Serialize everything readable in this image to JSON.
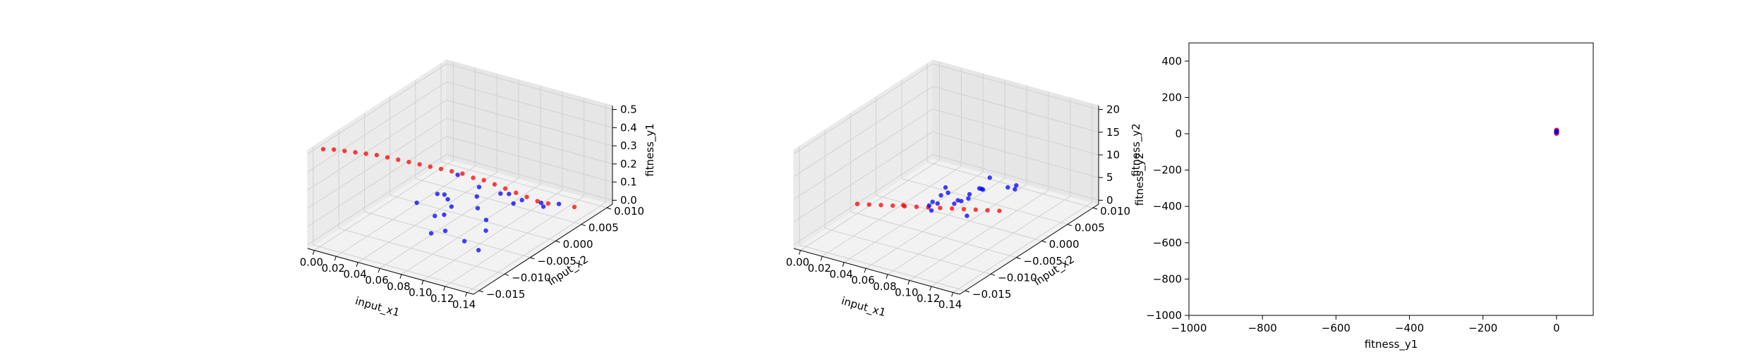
{
  "chart_data": [
    {
      "type": "scatter",
      "projection": "3d",
      "xlabel": "input_x1",
      "ylabel": "input_x2",
      "zlabel": "fitness_y1",
      "x_ticks": [
        "0.00",
        "0.02",
        "0.04",
        "0.06",
        "0.08",
        "0.10",
        "0.12",
        "0.14"
      ],
      "y_ticks": [
        "0.010",
        "0.005",
        "0.000",
        "−0.005",
        "−0.010",
        "−0.015"
      ],
      "z_ticks": [
        "0.0",
        "0.1",
        "0.2",
        "0.3",
        "0.4",
        "0.5"
      ],
      "xlim": [
        0,
        0.14
      ],
      "ylim": [
        -0.017,
        0.012
      ],
      "zlim": [
        0,
        0.52
      ],
      "grid": true,
      "series": [
        {
          "color": "#ff0000",
          "points": [
            [
              0.005,
              0.01,
              0.5
            ],
            [
              0.01,
              0.009,
              0.49
            ],
            [
              0.015,
              0.008,
              0.475
            ],
            [
              0.02,
              0.007,
              0.46
            ],
            [
              0.025,
              0.006,
              0.445
            ],
            [
              0.03,
              0.005,
              0.43
            ],
            [
              0.035,
              0.004,
              0.41
            ],
            [
              0.04,
              0.003,
              0.39
            ],
            [
              0.045,
              0.002,
              0.37
            ],
            [
              0.05,
              0.001,
              0.35
            ],
            [
              0.055,
              0.0,
              0.33
            ],
            [
              0.06,
              -0.001,
              0.31
            ],
            [
              0.065,
              -0.002,
              0.29
            ],
            [
              0.07,
              -0.003,
              0.27
            ],
            [
              0.075,
              -0.004,
              0.24
            ],
            [
              0.08,
              -0.005,
              0.22
            ],
            [
              0.085,
              -0.006,
              0.19
            ],
            [
              0.09,
              -0.007,
              0.16
            ],
            [
              0.095,
              -0.008,
              0.13
            ],
            [
              0.1,
              -0.009,
              0.1
            ],
            [
              0.105,
              -0.01,
              0.07
            ],
            [
              0.11,
              -0.011,
              0.05
            ],
            [
              0.12,
              -0.014,
              0.0
            ]
          ]
        },
        {
          "color": "#0000ff",
          "points": [
            [
              0.07,
              -0.002,
              0.28
            ],
            [
              0.075,
              0.002,
              0.25
            ],
            [
              0.08,
              -0.004,
              0.2
            ],
            [
              0.085,
              0.003,
              0.22
            ],
            [
              0.09,
              -0.006,
              0.15
            ],
            [
              0.095,
              0.0,
              0.18
            ],
            [
              0.1,
              -0.008,
              0.1
            ],
            [
              0.09,
              0.005,
              0.3
            ],
            [
              0.08,
              0.006,
              0.12
            ],
            [
              0.1,
              0.004,
              0.08
            ],
            [
              0.11,
              -0.01,
              0.05
            ],
            [
              0.105,
              -0.005,
              0.14
            ],
            [
              0.095,
              0.007,
              0.26
            ],
            [
              0.085,
              -0.009,
              0.09
            ],
            [
              0.075,
              0.004,
              0.17
            ],
            [
              0.1,
              0.008,
              0.2
            ],
            [
              0.11,
              0.002,
              0.12
            ],
            [
              0.115,
              -0.012,
              0.04
            ],
            [
              0.065,
              0.001,
              0.22
            ],
            [
              0.07,
              -0.006,
              0.1
            ],
            [
              0.12,
              0.006,
              0.1
            ],
            [
              0.09,
              -0.003,
              0.06
            ],
            [
              0.1,
              -0.012,
              0.02
            ],
            [
              0.08,
              0.009,
              0.33
            ]
          ]
        }
      ]
    },
    {
      "type": "scatter",
      "projection": "3d",
      "xlabel": "input_x1",
      "ylabel": "input_x2",
      "zlabel": "fitness_y2",
      "x_ticks": [
        "0.00",
        "0.02",
        "0.04",
        "0.06",
        "0.08",
        "0.10",
        "0.12",
        "0.14"
      ],
      "y_ticks": [
        "0.010",
        "0.005",
        "0.000",
        "−0.005",
        "−0.010",
        "−0.015"
      ],
      "z_ticks": [
        "0",
        "5",
        "10",
        "15",
        "20"
      ],
      "xlim": [
        0,
        0.14
      ],
      "ylim": [
        -0.017,
        0.012
      ],
      "zlim": [
        0,
        22
      ],
      "grid": true,
      "series": [
        {
          "color": "#ff0000",
          "points": [
            [
              0.005,
              0.0,
              2
            ],
            [
              0.015,
              0.0,
              2.6
            ],
            [
              0.025,
              0.0,
              3.2
            ],
            [
              0.035,
              0.0,
              3.8
            ],
            [
              0.045,
              0.0,
              4.4
            ],
            [
              0.055,
              0.0,
              5.0
            ],
            [
              0.065,
              0.0,
              5.6
            ],
            [
              0.075,
              0.0,
              6.2
            ],
            [
              0.085,
              0.0,
              6.8
            ],
            [
              0.095,
              0.0,
              7.4
            ],
            [
              0.105,
              0.0,
              8.0
            ],
            [
              0.115,
              0.0,
              8.6
            ],
            [
              0.125,
              0.0,
              9.2
            ],
            [
              0.06,
              0.004,
              8.5
            ]
          ]
        },
        {
          "color": "#0000ff",
          "points": [
            [
              0.09,
              0.0,
              9
            ],
            [
              0.095,
              0.002,
              10
            ],
            [
              0.1,
              -0.002,
              11
            ],
            [
              0.105,
              0.003,
              12
            ],
            [
              0.11,
              0.0,
              13
            ],
            [
              0.115,
              0.004,
              14
            ],
            [
              0.12,
              -0.003,
              12
            ],
            [
              0.1,
              0.006,
              15
            ],
            [
              0.11,
              0.007,
              17
            ],
            [
              0.12,
              0.005,
              16
            ],
            [
              0.125,
              0.002,
              18
            ],
            [
              0.13,
              0.008,
              14
            ],
            [
              0.085,
              0.003,
              10
            ],
            [
              0.095,
              -0.004,
              9
            ],
            [
              0.105,
              0.009,
              16
            ],
            [
              0.115,
              -0.006,
              10
            ],
            [
              0.12,
              0.01,
              21
            ],
            [
              0.09,
              0.006,
              12
            ],
            [
              0.13,
              -0.002,
              13
            ],
            [
              0.1,
              0.008,
              13
            ]
          ]
        }
      ]
    },
    {
      "type": "scatter",
      "xlabel": "fitness_y1",
      "ylabel": "fitness_y2",
      "x_ticks": [
        "−1000",
        "−800",
        "−600",
        "−400",
        "−200",
        "0"
      ],
      "y_ticks": [
        "−1000",
        "−800",
        "−600",
        "−400",
        "−200",
        "0",
        "200",
        "400"
      ],
      "xlim": [
        -1000,
        100
      ],
      "ylim": [
        -1000,
        500
      ],
      "grid": false,
      "series": [
        {
          "color": "#ff0000",
          "points": [
            [
              0.1,
              5
            ],
            [
              0.2,
              8
            ],
            [
              0.3,
              10
            ],
            [
              0.4,
              12
            ],
            [
              0.45,
              15
            ],
            [
              0.5,
              20
            ],
            [
              0.0,
              2
            ],
            [
              0.25,
              18
            ]
          ]
        },
        {
          "color": "#0000ff",
          "points": [
            [
              0.15,
              10
            ],
            [
              0.2,
              12
            ]
          ]
        }
      ]
    }
  ]
}
